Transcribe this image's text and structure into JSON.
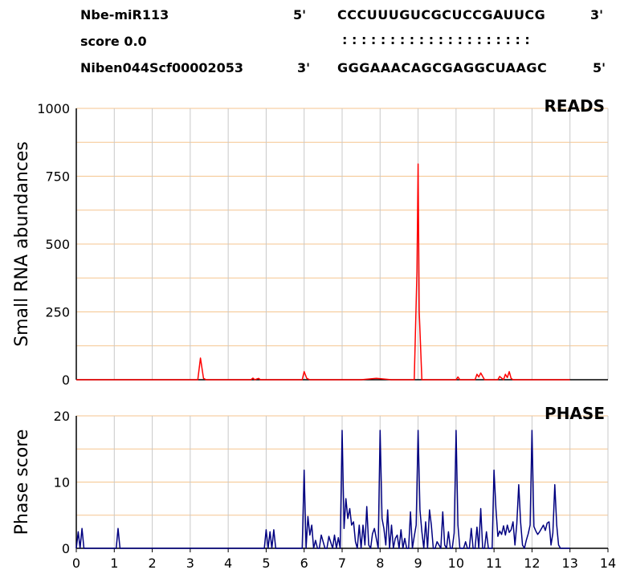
{
  "alignment": {
    "mirna_name": "Nbe-miR113",
    "mirna_end5": "5'",
    "mirna_seq": "CCCUUUGUCGCUCCGAUUCG",
    "mirna_end3": "3'",
    "score_label": "score 0.0",
    "match_marks": ": : : : : : : : : : : : : : : : : : : :",
    "target_name": "Niben044Scf00002053",
    "target_end3": "3'",
    "target_seq": "GGGAAACAGCGAGGCUAAGC",
    "target_end5": "5'"
  },
  "colors": {
    "reads_line": "#ff0000",
    "phase_line": "#000080",
    "hgrid": "#f5c68f",
    "vgrid": "#c8c8c8"
  },
  "chart_data": [
    {
      "type": "line",
      "title": "READS",
      "ylabel": "Small RNA abundances",
      "xlim": [
        0,
        14
      ],
      "ylim": [
        0,
        1000
      ],
      "yticks": [
        0,
        250,
        500,
        750,
        1000
      ],
      "x_ticks": [
        0,
        1,
        2,
        3,
        4,
        5,
        6,
        7,
        8,
        9,
        10,
        11,
        12,
        13,
        14
      ],
      "grid": "on",
      "series": [
        {
          "x": [
            0,
            3.2,
            3.27,
            3.35,
            3.42,
            4.6,
            4.65,
            4.7,
            4.8,
            4.85,
            5.95,
            6.0,
            6.07,
            6.15,
            7.5,
            7.9,
            8.3,
            8.9,
            8.97,
            9.0,
            9.03,
            9.1,
            9.5,
            10.0,
            10.05,
            10.1,
            10.5,
            10.55,
            10.6,
            10.65,
            10.7,
            10.75,
            11.1,
            11.15,
            11.25,
            11.3,
            11.35,
            11.4,
            11.45,
            11.5,
            11.6,
            13.0
          ],
          "y": [
            0,
            0,
            80,
            5,
            0,
            0,
            6,
            0,
            5,
            0,
            0,
            30,
            5,
            0,
            0,
            5,
            0,
            0,
            400,
            795,
            250,
            0,
            0,
            0,
            10,
            0,
            0,
            20,
            10,
            25,
            12,
            0,
            0,
            12,
            0,
            20,
            8,
            30,
            5,
            0,
            0,
            0
          ]
        }
      ]
    },
    {
      "type": "line",
      "title": "PHASE",
      "ylabel": "Phase score",
      "xlim": [
        0,
        14
      ],
      "ylim": [
        0,
        20
      ],
      "yticks": [
        0,
        10,
        20
      ],
      "xticks": [
        0,
        1,
        2,
        3,
        4,
        5,
        6,
        7,
        8,
        9,
        10,
        11,
        12,
        13,
        14
      ],
      "grid": "on",
      "series": [
        {
          "x": [
            0,
            0.05,
            0.1,
            0.15,
            0.2,
            1.05,
            1.1,
            1.15,
            1.2,
            4.95,
            5.0,
            5.05,
            5.1,
            5.15,
            5.2,
            5.25,
            5.95,
            6.0,
            6.05,
            6.1,
            6.15,
            6.2,
            6.25,
            6.3,
            6.35,
            6.4,
            6.45,
            6.55,
            6.6,
            6.65,
            6.75,
            6.8,
            6.85,
            6.9,
            6.95,
            7.0,
            7.05,
            7.1,
            7.15,
            7.2,
            7.25,
            7.3,
            7.35,
            7.4,
            7.45,
            7.5,
            7.55,
            7.6,
            7.65,
            7.7,
            7.75,
            7.8,
            7.85,
            7.95,
            8.0,
            8.05,
            8.1,
            8.15,
            8.2,
            8.25,
            8.3,
            8.35,
            8.4,
            8.45,
            8.5,
            8.55,
            8.6,
            8.65,
            8.7,
            8.75,
            8.8,
            8.85,
            8.9,
            8.95,
            9.0,
            9.05,
            9.1,
            9.15,
            9.2,
            9.25,
            9.3,
            9.35,
            9.4,
            9.45,
            9.5,
            9.55,
            9.6,
            9.65,
            9.7,
            9.75,
            9.8,
            9.85,
            9.9,
            9.95,
            10.0,
            10.05,
            10.1,
            10.15,
            10.2,
            10.25,
            10.3,
            10.35,
            10.4,
            10.45,
            10.5,
            10.55,
            10.6,
            10.65,
            10.7,
            10.75,
            10.8,
            10.85,
            10.9,
            10.95,
            11.0,
            11.05,
            11.1,
            11.15,
            11.2,
            11.25,
            11.3,
            11.35,
            11.4,
            11.45,
            11.5,
            11.55,
            11.6,
            11.65,
            11.7,
            11.75,
            11.8,
            11.85,
            11.9,
            11.95,
            12.0,
            12.05,
            12.1,
            12.15,
            12.2,
            12.25,
            12.3,
            12.35,
            12.4,
            12.45,
            12.5,
            12.55,
            12.6,
            12.65,
            12.7,
            12.75,
            12.8,
            12.85,
            12.9,
            12.95,
            13.0
          ],
          "y": [
            0,
            2.5,
            0,
            3,
            0,
            0,
            3,
            0,
            0,
            0,
            2.8,
            0,
            2.5,
            0,
            2.8,
            0,
            0,
            11.8,
            0,
            4.8,
            2,
            3.5,
            0,
            1.2,
            0,
            0,
            2,
            0,
            0,
            1.8,
            0,
            2,
            0,
            1.6,
            0,
            17.8,
            3,
            7.5,
            4.5,
            6,
            3.5,
            4,
            1,
            0,
            3.5,
            0,
            3.5,
            0.5,
            6.3,
            0.5,
            0,
            2.2,
            3,
            0,
            17.8,
            4.5,
            3,
            0.5,
            5.8,
            0,
            3.5,
            0,
            1.5,
            2,
            0,
            2.8,
            0,
            1.5,
            0,
            0,
            5.5,
            0,
            1.8,
            3.5,
            17.8,
            5.8,
            2.5,
            0,
            4,
            0,
            5.8,
            3.5,
            0,
            0,
            1,
            0.5,
            0,
            5.5,
            0.5,
            0,
            2.5,
            0,
            0,
            2.3,
            17.8,
            3.5,
            0,
            0,
            0,
            1,
            0,
            0,
            3,
            0,
            0,
            3.2,
            0,
            6,
            0,
            0,
            2.5,
            0,
            0,
            0,
            11.8,
            6,
            1.8,
            2.6,
            2.1,
            3.4,
            2,
            3.5,
            2.4,
            2.8,
            4,
            0.5,
            3.7,
            9.6,
            4,
            0.5,
            0,
            1.2,
            2.2,
            3.5,
            17.8,
            3.3,
            2.6,
            2.1,
            2.5,
            3,
            3.5,
            2.7,
            3.8,
            4,
            0.5,
            2.3,
            9.6,
            3.5,
            0.5,
            0,
            0,
            0,
            0,
            0,
            0
          ]
        }
      ]
    }
  ]
}
